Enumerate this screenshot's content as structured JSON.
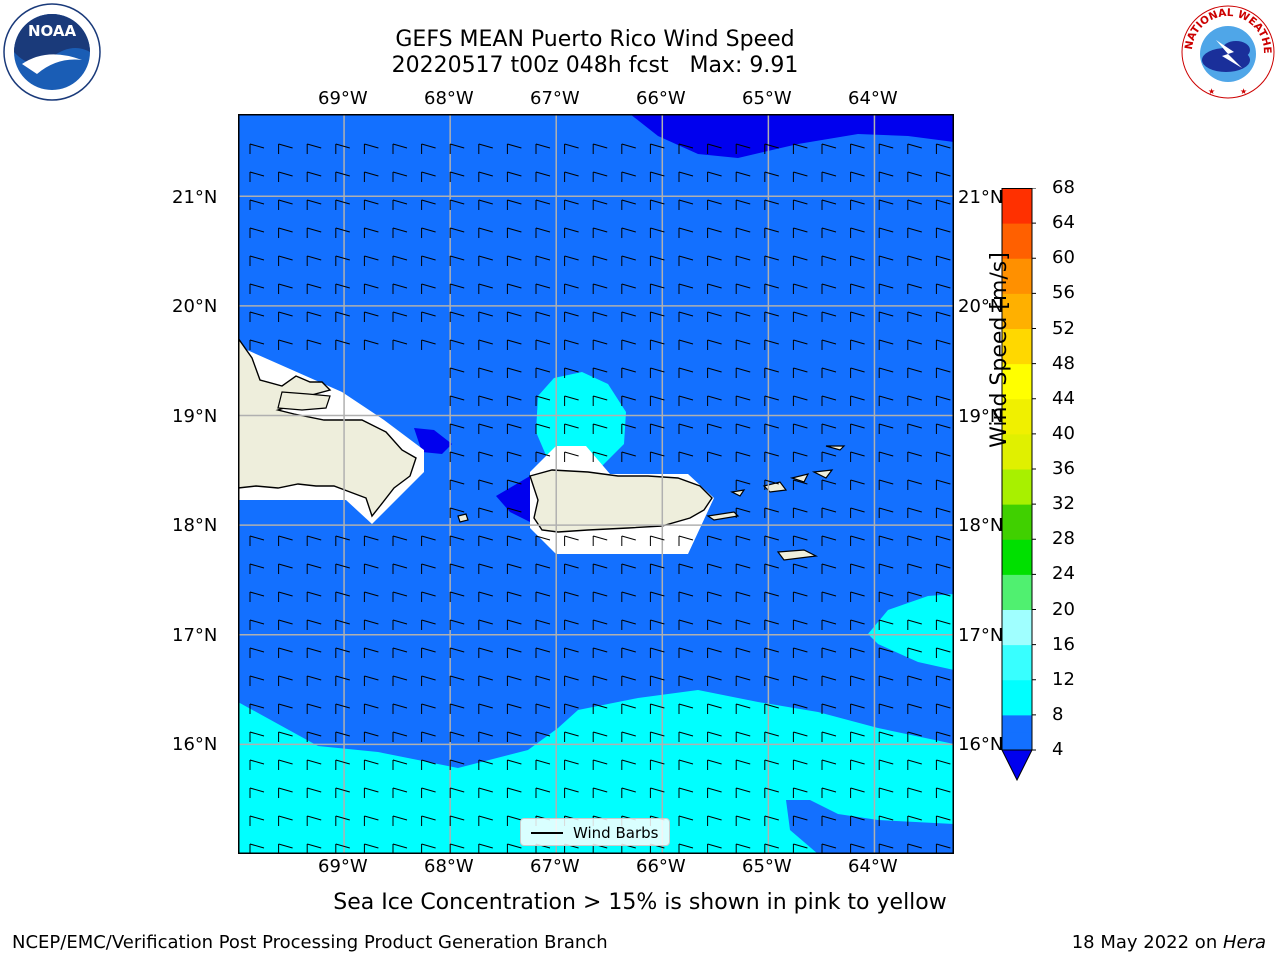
{
  "title": {
    "line1": "GEFS MEAN Puerto Rico Wind Speed",
    "line2": "20220517 t00z 048h fcst   Max: 9.91"
  },
  "axes": {
    "lon_labels": [
      "69°W",
      "68°W",
      "67°W",
      "66°W",
      "65°W",
      "64°W"
    ],
    "lat_labels": [
      "21°N",
      "20°N",
      "19°N",
      "18°N",
      "17°N",
      "16°N"
    ],
    "lon_values": [
      -69,
      -68,
      -67,
      -66,
      -65,
      -64
    ],
    "lat_values": [
      21,
      20,
      19,
      18,
      17,
      16
    ],
    "lon_range": [
      -70.0,
      -63.25
    ],
    "lat_range": [
      15.0,
      21.75
    ],
    "grid": true
  },
  "legend": {
    "label": "Wind Barbs"
  },
  "colorbar": {
    "title": "Wind Speed [m/s]",
    "tick_labels": [
      "4",
      "8",
      "12",
      "16",
      "20",
      "24",
      "28",
      "32",
      "36",
      "40",
      "44",
      "48",
      "52",
      "56",
      "60",
      "64",
      "68"
    ],
    "levels": [
      4,
      6,
      8,
      10,
      12,
      14,
      16,
      18,
      20,
      22,
      24,
      26,
      28,
      30,
      32,
      34,
      36,
      38,
      40,
      42,
      44,
      46,
      48,
      50,
      52,
      54,
      56,
      58,
      60,
      62,
      64,
      66,
      68
    ],
    "colors": [
      "#1370ff",
      "#1370ff",
      "#00ffff",
      "#00ffff",
      "#38ffff",
      "#38ffff",
      "#a0ffff",
      "#a0ffff",
      "#50f070",
      "#50f070",
      "#00e000",
      "#00e000",
      "#40d000",
      "#40d000",
      "#a8f000",
      "#a8f000",
      "#e0f000",
      "#e0f000",
      "#f0f000",
      "#f0f000",
      "#ffff00",
      "#ffff00",
      "#ffd800",
      "#ffd800",
      "#ffb000",
      "#ffb000",
      "#ff9000",
      "#ff9000",
      "#ff6000",
      "#ff6000",
      "#ff3000",
      "#ff3000"
    ],
    "extend_under_color": "#0000ee"
  },
  "footer": {
    "note": "Sea Ice Concentration > 15% is shown in pink to yellow",
    "credit_left": "NCEP/EMC/Verification Post Processing Product Generation Branch",
    "credit_right_prefix": "18 May 2022 on ",
    "credit_right_host": "Hera"
  },
  "logos": {
    "noaa_text": "NOAA",
    "nws_text": "NATIONAL WEATHER SERVICE"
  },
  "colors": {
    "wind_4_8": "#1370ff",
    "wind_8_12": "#00ffff",
    "wind_below_4": "#0000ee",
    "land": "#eeeedc"
  }
}
